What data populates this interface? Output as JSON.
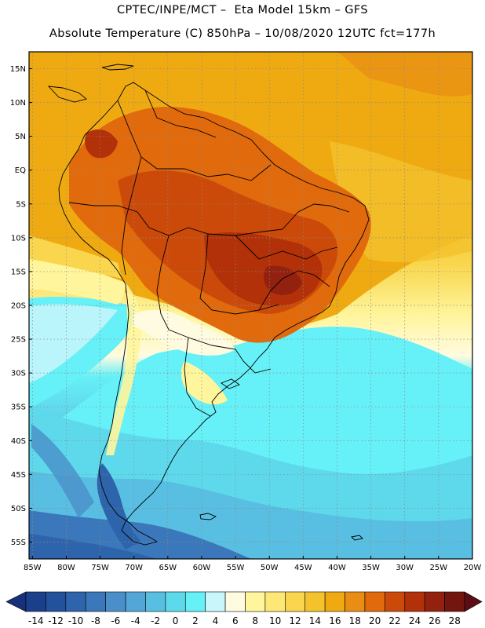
{
  "header": {
    "title_line1": "CPTEC/INPE/MCT –  Eta Model 15km – GFS",
    "title_line2": "Absolute Temperature (C) 850hPa – 10/08/2020 12UTC fct=177h"
  },
  "map": {
    "lat_labels": [
      "15N",
      "10N",
      "5N",
      "EQ",
      "5S",
      "10S",
      "15S",
      "20S",
      "25S",
      "30S",
      "35S",
      "40S",
      "45S",
      "50S",
      "55S"
    ],
    "lon_labels": [
      "85W",
      "80W",
      "75W",
      "70W",
      "65W",
      "60W",
      "55W",
      "50W",
      "45W",
      "40W",
      "35W",
      "30W",
      "25W",
      "20W"
    ],
    "lat_values": [
      15,
      10,
      5,
      0,
      -5,
      -10,
      -15,
      -20,
      -25,
      -30,
      -35,
      -40,
      -45,
      -50,
      -55
    ],
    "lon_values": [
      -85,
      -80,
      -75,
      -70,
      -65,
      -60,
      -55,
      -50,
      -45,
      -40,
      -35,
      -30,
      -25,
      -20
    ],
    "extent": {
      "lon_min": -85.5,
      "lon_max": -20,
      "lat_min": -57.5,
      "lat_max": 17.5
    }
  },
  "colorbar": {
    "labels": [
      "-14",
      "-12",
      "-10",
      "-8",
      "-6",
      "-4",
      "-2",
      "0",
      "2",
      "4",
      "6",
      "8",
      "10",
      "12",
      "14",
      "16",
      "18",
      "20",
      "22",
      "24",
      "26",
      "28"
    ],
    "colors": [
      "#1c3f8c",
      "#24519c",
      "#2e64ab",
      "#3a78bb",
      "#4a8fc9",
      "#52a7d6",
      "#59bfe2",
      "#5dd9eb",
      "#66f0f7",
      "#c8f6fb",
      "#fffbe0",
      "#fff59c",
      "#fde776",
      "#f9d64e",
      "#f3c22c",
      "#efaa12",
      "#ea8d14",
      "#e06a0c",
      "#cc4a09",
      "#b23108",
      "#922110",
      "#741610"
    ],
    "low_extend_color": "#16307a",
    "high_extend_color": "#5c0c14"
  }
}
